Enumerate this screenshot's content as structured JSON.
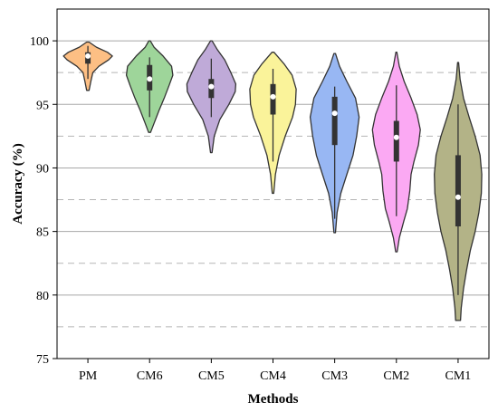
{
  "chart_data": {
    "type": "violin",
    "xlabel": "Methods",
    "ylabel": "Accuracy (%)",
    "ylim": [
      75,
      102.5
    ],
    "yticks": [
      75,
      80,
      85,
      90,
      95,
      100
    ],
    "grid": {
      "major": "solid",
      "minor": "dashed",
      "minor_values": [
        77.5,
        82.5,
        87.5,
        92.5,
        97.5
      ]
    },
    "categories": [
      "PM",
      "CM6",
      "CM5",
      "CM4",
      "CM3",
      "CM2",
      "CM1"
    ],
    "colors": [
      "#FDBF84",
      "#9ED59A",
      "#BFAAD8",
      "#FAF39A",
      "#98B7F3",
      "#FBA9F3",
      "#B3B387"
    ],
    "series": [
      {
        "min": 96.1,
        "max": 99.9,
        "q1": 98.2,
        "median": 98.8,
        "q3": 99.1,
        "whisker_low": 97.0,
        "whisker_high": 99.6,
        "shape": [
          [
            96.1,
            0.05
          ],
          [
            96.8,
            0.12
          ],
          [
            97.5,
            0.2
          ],
          [
            98.0,
            0.45
          ],
          [
            98.5,
            0.85
          ],
          [
            98.8,
            1.0
          ],
          [
            99.1,
            0.8
          ],
          [
            99.5,
            0.35
          ],
          [
            99.9,
            0.05
          ]
        ]
      },
      {
        "min": 92.8,
        "max": 100.0,
        "q1": 96.1,
        "median": 97.0,
        "q3": 98.1,
        "whisker_low": 94.0,
        "whisker_high": 98.7,
        "shape": [
          [
            92.8,
            0.04
          ],
          [
            93.5,
            0.18
          ],
          [
            94.5,
            0.38
          ],
          [
            95.5,
            0.6
          ],
          [
            96.5,
            0.8
          ],
          [
            97.3,
            0.95
          ],
          [
            98.0,
            0.9
          ],
          [
            98.8,
            0.55
          ],
          [
            99.5,
            0.18
          ],
          [
            100.0,
            0.03
          ]
        ]
      },
      {
        "min": 91.2,
        "max": 100.0,
        "q1": 95.5,
        "median": 96.4,
        "q3": 97.0,
        "whisker_low": 94.0,
        "whisker_high": 98.6,
        "shape": [
          [
            91.2,
            0.03
          ],
          [
            92.5,
            0.12
          ],
          [
            93.8,
            0.35
          ],
          [
            95.0,
            0.72
          ],
          [
            96.0,
            0.98
          ],
          [
            96.6,
            1.0
          ],
          [
            97.5,
            0.8
          ],
          [
            98.5,
            0.55
          ],
          [
            99.3,
            0.25
          ],
          [
            100.0,
            0.03
          ]
        ]
      },
      {
        "min": 88.0,
        "max": 99.1,
        "q1": 94.2,
        "median": 95.6,
        "q3": 96.6,
        "whisker_low": 90.5,
        "whisker_high": 97.8,
        "shape": [
          [
            88.0,
            0.03
          ],
          [
            89.5,
            0.1
          ],
          [
            91.0,
            0.25
          ],
          [
            92.5,
            0.5
          ],
          [
            94.0,
            0.8
          ],
          [
            95.0,
            0.92
          ],
          [
            96.2,
            0.95
          ],
          [
            97.3,
            0.78
          ],
          [
            98.2,
            0.45
          ],
          [
            99.1,
            0.04
          ]
        ]
      },
      {
        "min": 84.9,
        "max": 99.0,
        "q1": 91.8,
        "median": 94.3,
        "q3": 95.6,
        "whisker_low": 86.0,
        "whisker_high": 96.4,
        "shape": [
          [
            84.9,
            0.03
          ],
          [
            86.5,
            0.1
          ],
          [
            88.0,
            0.25
          ],
          [
            89.5,
            0.5
          ],
          [
            91.0,
            0.75
          ],
          [
            92.5,
            0.9
          ],
          [
            94.0,
            1.0
          ],
          [
            95.5,
            0.85
          ],
          [
            96.8,
            0.5
          ],
          [
            98.0,
            0.2
          ],
          [
            99.0,
            0.03
          ]
        ]
      },
      {
        "min": 83.4,
        "max": 99.1,
        "q1": 90.5,
        "median": 92.4,
        "q3": 93.7,
        "whisker_low": 86.2,
        "whisker_high": 96.5,
        "shape": [
          [
            83.4,
            0.03
          ],
          [
            84.5,
            0.12
          ],
          [
            85.8,
            0.3
          ],
          [
            86.8,
            0.45
          ],
          [
            88.2,
            0.55
          ],
          [
            89.5,
            0.6
          ],
          [
            90.5,
            0.72
          ],
          [
            91.8,
            0.9
          ],
          [
            93.0,
            0.98
          ],
          [
            94.2,
            0.85
          ],
          [
            95.5,
            0.6
          ],
          [
            96.8,
            0.32
          ],
          [
            98.0,
            0.12
          ],
          [
            99.1,
            0.02
          ]
        ]
      },
      {
        "min": 78.0,
        "max": 98.3,
        "q1": 85.4,
        "median": 87.7,
        "q3": 91.0,
        "whisker_low": 80.0,
        "whisker_high": 95.0,
        "shape": [
          [
            78.0,
            0.1
          ],
          [
            79.0,
            0.13
          ],
          [
            80.5,
            0.22
          ],
          [
            82.0,
            0.35
          ],
          [
            83.5,
            0.5
          ],
          [
            85.0,
            0.7
          ],
          [
            86.5,
            0.85
          ],
          [
            88.0,
            0.95
          ],
          [
            89.5,
            0.97
          ],
          [
            91.0,
            0.9
          ],
          [
            92.5,
            0.7
          ],
          [
            94.0,
            0.45
          ],
          [
            95.5,
            0.22
          ],
          [
            97.0,
            0.08
          ],
          [
            98.3,
            0.02
          ]
        ]
      }
    ]
  }
}
